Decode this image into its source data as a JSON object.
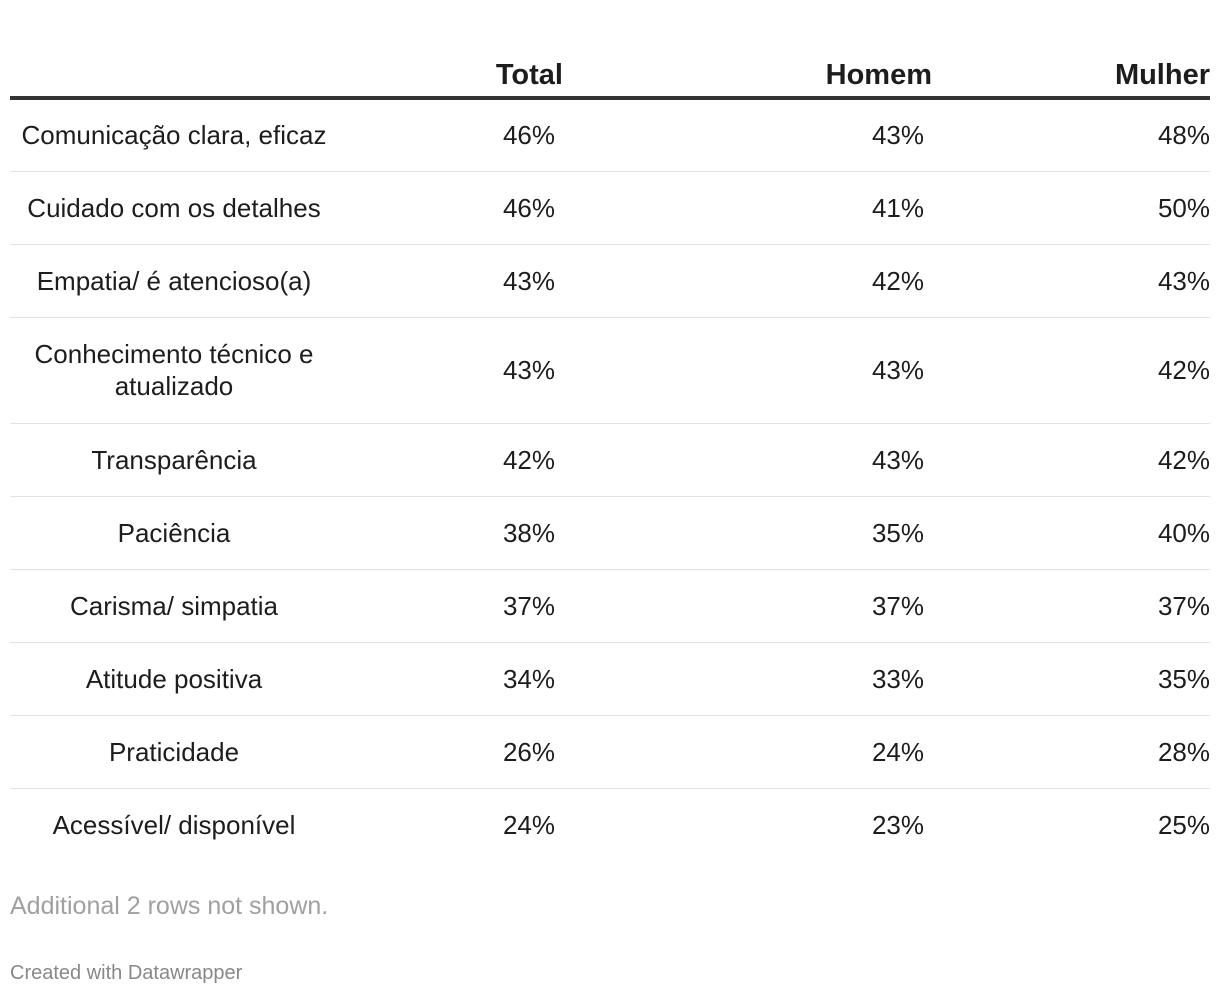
{
  "chart_data": {
    "type": "table",
    "columns": [
      "",
      "Total",
      "Homem",
      "Mulher"
    ],
    "rows": [
      {
        "label": "Comunicação clara, eficaz",
        "total": "46%",
        "homem": "43%",
        "mulher": "48%"
      },
      {
        "label": "Cuidado com os detalhes",
        "total": "46%",
        "homem": "41%",
        "mulher": "50%"
      },
      {
        "label": "Empatia/ é atencioso(a)",
        "total": "43%",
        "homem": "42%",
        "mulher": "43%"
      },
      {
        "label": "Conhecimento técnico e atualizado",
        "total": "43%",
        "homem": "43%",
        "mulher": "42%"
      },
      {
        "label": "Transparência",
        "total": "42%",
        "homem": "43%",
        "mulher": "42%"
      },
      {
        "label": "Paciência",
        "total": "38%",
        "homem": "35%",
        "mulher": "40%"
      },
      {
        "label": "Carisma/ simpatia",
        "total": "37%",
        "homem": "37%",
        "mulher": "37%"
      },
      {
        "label": "Atitude positiva",
        "total": "34%",
        "homem": "33%",
        "mulher": "35%"
      },
      {
        "label": "Praticidade",
        "total": "26%",
        "homem": "24%",
        "mulher": "28%"
      },
      {
        "label": "Acessível/ disponível",
        "total": "24%",
        "homem": "23%",
        "mulher": "25%"
      }
    ],
    "notes": "Additional 2 rows not shown.",
    "credit": "Created with Datawrapper"
  }
}
